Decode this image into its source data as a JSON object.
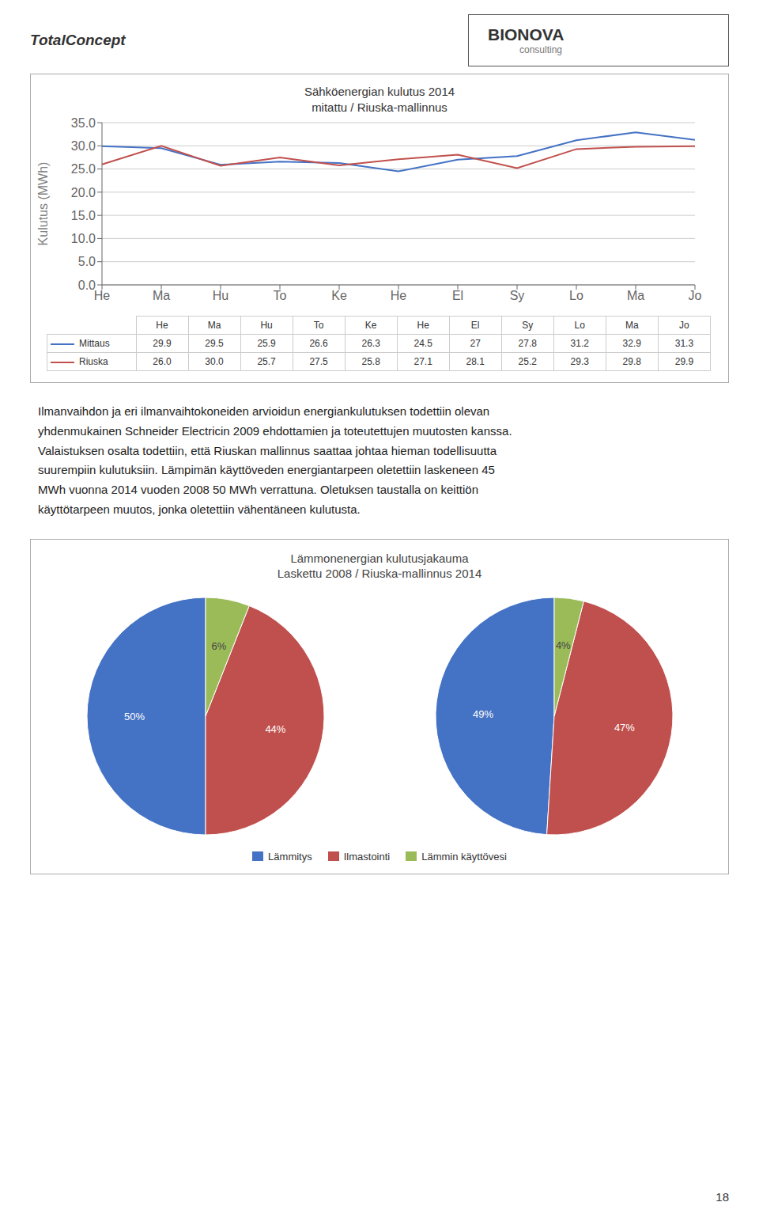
{
  "chart_data": [
    {
      "type": "line",
      "title": "Sähköenergian kulutus 2014",
      "subtitle": "mitattu / Riuska-mallinnus",
      "ylabel": "Kulutus (MWh)",
      "categories": [
        "He",
        "Ma",
        "Hu",
        "To",
        "Ke",
        "He",
        "El",
        "Sy",
        "Lo",
        "Ma",
        "Jo"
      ],
      "series": [
        {
          "name": "Mittaus",
          "color": "#4472C4",
          "values": [
            29.9,
            29.5,
            25.9,
            26.6,
            26.3,
            24.5,
            27.0,
            27.8,
            31.2,
            32.9,
            31.3
          ]
        },
        {
          "name": "Riuska",
          "color": "#C0504D",
          "values": [
            26.0,
            30.0,
            25.7,
            27.5,
            25.8,
            27.1,
            28.1,
            25.2,
            29.3,
            29.8,
            29.9
          ],
          "value_labels": [
            "26.0",
            "30.0",
            "25.7",
            "27.5",
            "25.8",
            "27.1",
            "28.1",
            "25.2",
            "29.3",
            "29.8",
            "29.9"
          ]
        }
      ],
      "ylim": [
        0,
        35
      ],
      "yticks": [
        {
          "value": 0,
          "label": "0.0"
        },
        {
          "value": 5,
          "label": "5.0"
        },
        {
          "value": 10,
          "label": "10.0"
        },
        {
          "value": 15,
          "label": "15.0"
        },
        {
          "value": 20,
          "label": "20.0"
        },
        {
          "value": 25,
          "label": "25.0"
        },
        {
          "value": 30,
          "label": "30.0"
        },
        {
          "value": 35,
          "label": "35.0"
        }
      ],
      "grid": true,
      "legend": "bottom"
    },
    {
      "type": "pie",
      "title": "Lämmonenergian kulutusjakauma",
      "subtitle": "Laskettu 2008 / Riuska-mallinnus 2014",
      "categories": [
        "Lämmitys",
        "Ilmastointi",
        "Lämmin käyttövesi"
      ],
      "values": [
        50,
        44,
        6
      ],
      "value_labels": [
        "50%",
        "44%",
        "6%"
      ],
      "colors": [
        "#4472C4",
        "#C0504D",
        "#9BBB59"
      ],
      "data_labels": true,
      "legend": "bottom"
    },
    {
      "type": "pie",
      "categories": [
        "Lämmitys",
        "Ilmastointi",
        "Lämmin käyttövesi"
      ],
      "values": [
        49,
        47,
        4
      ],
      "value_labels": [
        "49%",
        "47%",
        "4%"
      ],
      "colors": [
        "#4472C4",
        "#C0504D",
        "#9BBB59"
      ],
      "data_labels": true,
      "legend": "bottom"
    }
  ],
  "annotations": [
    "Total",
    "Concept",
    "BIO",
    "NOVA",
    "consulting",
    "Ilmanvaihdon ja eri ilmanvaihtokoneiden arvioidun energiankulutuksen todettiin olevan",
    "yhdenmukainen Schneider Electricin 2009 ehdottamien ja toteutettujen muutosten kanssa.",
    "Valaistuksen osalta todettiin, että Riuskan mallinnus saattaa johtaa hieman todellisuutta",
    "suurempiin kulutuksiin. Lämpimän käyttöveden energiantarpeen oletettiin laskeneen 45",
    "MWh vuonna 2014 vuoden 2008 50 MWh verrattuna. Oletuksen taustalla on keittiön",
    "käyttötarpeen muutos, jonka oletettiin vähentäneen kulutusta.",
    "18"
  ]
}
